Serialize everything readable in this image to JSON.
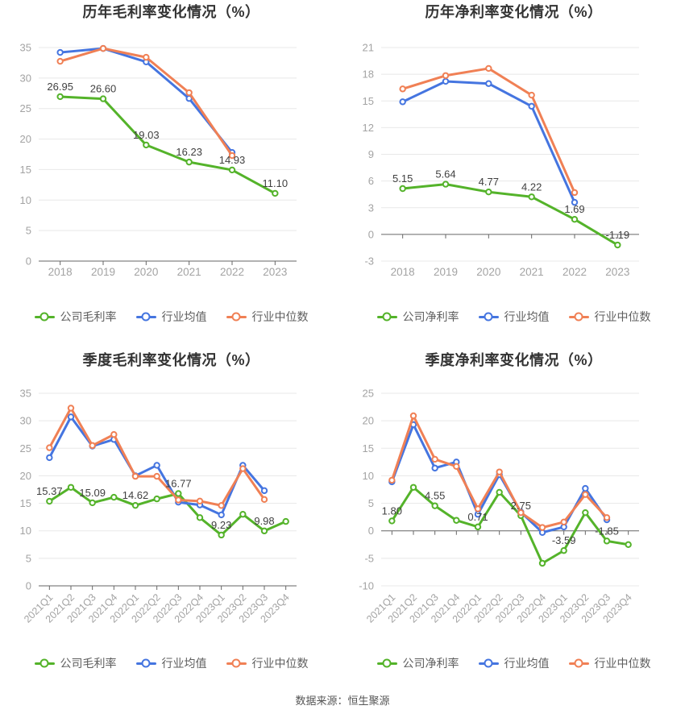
{
  "page": {
    "footer": "数据来源：恒生聚源"
  },
  "colors": {
    "company": "#54b32a",
    "industry_avg": "#4575e0",
    "industry_median": "#f08055",
    "grid": "#e8e8e8",
    "axis_line": "#666666",
    "tick_label": "#a3a3a3",
    "data_label": "#404040",
    "title": "#333333",
    "legend_text": "#5e5e5e"
  },
  "chart_data": [
    {
      "type": "line",
      "title": "历年毛利率变化情况（%）",
      "categories": [
        "2018",
        "2019",
        "2020",
        "2021",
        "2022",
        "2023"
      ],
      "ylim": [
        0,
        35
      ],
      "ytick_step": 5,
      "rotate_x_labels": false,
      "grid": true,
      "legend_position": "bottom",
      "series": [
        {
          "name": "公司毛利率",
          "color_key": "company",
          "values": [
            26.95,
            26.6,
            19.03,
            16.23,
            14.93,
            11.1
          ],
          "point_labels": {
            "0": "26.95",
            "1": "26.60",
            "2": "19.03",
            "3": "16.23",
            "4": "14.93",
            "5": "11.10"
          }
        },
        {
          "name": "行业均值",
          "color_key": "industry_avg",
          "values": [
            34.2,
            34.85,
            32.65,
            26.65,
            17.8,
            null
          ]
        },
        {
          "name": "行业中位数",
          "color_key": "industry_median",
          "values": [
            32.75,
            34.85,
            33.4,
            27.6,
            17.3,
            null
          ]
        }
      ]
    },
    {
      "type": "line",
      "title": "历年净利率变化情况（%）",
      "categories": [
        "2018",
        "2019",
        "2020",
        "2021",
        "2022",
        "2023"
      ],
      "ylim": [
        -3,
        21
      ],
      "ytick_step": 3,
      "rotate_x_labels": false,
      "grid": true,
      "legend_position": "bottom",
      "series": [
        {
          "name": "公司净利率",
          "color_key": "company",
          "values": [
            5.15,
            5.64,
            4.77,
            4.22,
            1.69,
            -1.19
          ],
          "point_labels": {
            "0": "5.15",
            "1": "5.64",
            "2": "4.77",
            "3": "4.22",
            "4": "1.69",
            "5": "-1.19"
          }
        },
        {
          "name": "行业均值",
          "color_key": "industry_avg",
          "values": [
            14.9,
            17.2,
            16.95,
            14.4,
            3.6,
            null
          ]
        },
        {
          "name": "行业中位数",
          "color_key": "industry_median",
          "values": [
            16.35,
            17.85,
            18.65,
            15.65,
            4.7,
            null
          ]
        }
      ]
    },
    {
      "type": "line",
      "title": "季度毛利率变化情况（%）",
      "categories": [
        "2021Q1",
        "2021Q2",
        "2021Q3",
        "2021Q4",
        "2022Q1",
        "2022Q2",
        "2022Q3",
        "2022Q4",
        "2023Q1",
        "2023Q2",
        "2023Q3",
        "2023Q4"
      ],
      "ylim": [
        0,
        35
      ],
      "ytick_step": 5,
      "rotate_x_labels": true,
      "grid": true,
      "legend_position": "bottom",
      "series": [
        {
          "name": "公司毛利率",
          "color_key": "company",
          "values": [
            15.37,
            17.9,
            15.09,
            16.1,
            14.62,
            15.8,
            16.77,
            12.4,
            9.23,
            13.0,
            9.98,
            11.7
          ],
          "point_labels": {
            "0": "15.37",
            "2": "15.09",
            "4": "14.62",
            "6": "16.77",
            "8": "9.23",
            "10": "9.98"
          }
        },
        {
          "name": "行业均值",
          "color_key": "industry_avg",
          "values": [
            23.3,
            30.7,
            25.4,
            26.6,
            20.0,
            21.9,
            15.2,
            14.7,
            12.9,
            21.9,
            17.3,
            null
          ]
        },
        {
          "name": "行业中位数",
          "color_key": "industry_median",
          "values": [
            25.1,
            32.3,
            25.5,
            27.5,
            19.9,
            19.9,
            15.6,
            15.4,
            14.6,
            21.3,
            15.7,
            null
          ]
        }
      ]
    },
    {
      "type": "line",
      "title": "季度净利率变化情况（%）",
      "categories": [
        "2021Q1",
        "2021Q2",
        "2021Q3",
        "2021Q4",
        "2022Q1",
        "2022Q2",
        "2022Q3",
        "2022Q4",
        "2023Q1",
        "2023Q2",
        "2023Q3",
        "2023Q4"
      ],
      "ylim": [
        -10,
        25
      ],
      "ytick_step": 5,
      "rotate_x_labels": true,
      "grid": true,
      "legend_position": "bottom",
      "series": [
        {
          "name": "公司净利率",
          "color_key": "company",
          "values": [
            1.8,
            7.9,
            4.55,
            1.9,
            0.71,
            7.0,
            2.75,
            -5.9,
            -3.59,
            3.3,
            -1.85,
            -2.5
          ],
          "point_labels": {
            "0": "1.80",
            "2": "4.55",
            "4": "0.71",
            "6": "2.75",
            "8": "-3.59",
            "10": "-1.85"
          }
        },
        {
          "name": "行业均值",
          "color_key": "industry_avg",
          "values": [
            8.9,
            19.3,
            11.4,
            12.5,
            3.0,
            10.2,
            3.4,
            -0.3,
            0.7,
            7.7,
            2.0,
            null
          ]
        },
        {
          "name": "行业中位数",
          "color_key": "industry_median",
          "values": [
            9.2,
            20.9,
            13.0,
            11.7,
            4.0,
            10.7,
            3.3,
            0.6,
            1.6,
            6.6,
            2.4,
            null
          ]
        }
      ]
    }
  ]
}
